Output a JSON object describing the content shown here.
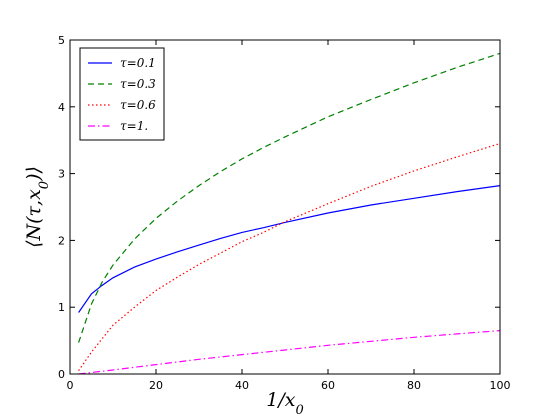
{
  "chart_data": {
    "type": "line",
    "xlabel": "1/x_0",
    "ylabel": "⟨N(τ,x_0)⟩",
    "xlim": [
      0,
      100
    ],
    "ylim": [
      0,
      5
    ],
    "xticks": [
      0,
      20,
      40,
      60,
      80,
      100
    ],
    "yticks": [
      0,
      1,
      2,
      3,
      4,
      5
    ],
    "grid": false,
    "legend_position": "top-left",
    "series": [
      {
        "name": "τ=0.1",
        "color": "#0000ff",
        "dash": "solid",
        "x": [
          2,
          5,
          7.5,
          10,
          15,
          20,
          25,
          30,
          35,
          40,
          45,
          50,
          60,
          70,
          80,
          90,
          100
        ],
        "y": [
          0.92,
          1.2,
          1.33,
          1.44,
          1.6,
          1.72,
          1.83,
          1.93,
          2.03,
          2.12,
          2.19,
          2.27,
          2.41,
          2.53,
          2.63,
          2.73,
          2.82
        ]
      },
      {
        "name": "τ=0.3",
        "color": "#008000",
        "dash": "dashed",
        "x": [
          2,
          5,
          7.5,
          10,
          15,
          20,
          25,
          30,
          35,
          40,
          45,
          50,
          60,
          70,
          80,
          90,
          100
        ],
        "y": [
          0.47,
          1.05,
          1.38,
          1.63,
          2.02,
          2.33,
          2.59,
          2.82,
          3.03,
          3.22,
          3.39,
          3.55,
          3.85,
          4.11,
          4.36,
          4.59,
          4.8
        ]
      },
      {
        "name": "τ=0.6",
        "color": "#ff0000",
        "dash": "dotted",
        "x": [
          2,
          5,
          10,
          15,
          20,
          25,
          30,
          35,
          40,
          45,
          50,
          60,
          70,
          80,
          90,
          100
        ],
        "y": [
          0.05,
          0.33,
          0.73,
          1.0,
          1.25,
          1.45,
          1.64,
          1.81,
          1.98,
          2.12,
          2.28,
          2.55,
          2.81,
          3.04,
          3.25,
          3.45
        ]
      },
      {
        "name": "τ=1.",
        "color": "#ff00ff",
        "dash": "dashdot",
        "x": [
          2,
          10,
          20,
          30,
          40,
          50,
          60,
          70,
          80,
          90,
          100
        ],
        "y": [
          0.0,
          0.06,
          0.14,
          0.22,
          0.29,
          0.36,
          0.43,
          0.49,
          0.55,
          0.6,
          0.65
        ]
      }
    ]
  }
}
